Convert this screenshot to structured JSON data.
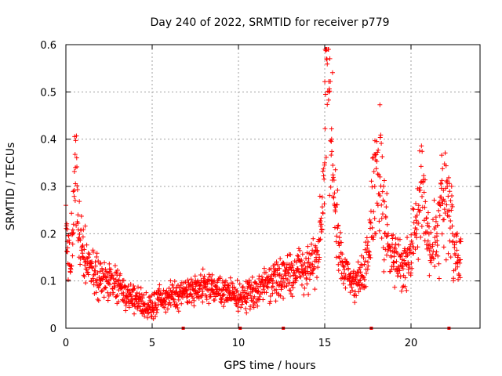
{
  "chart_data": {
    "type": "scatter",
    "title": "Day 240 of 2022, SRMTID for receiver p779",
    "xlabel": "GPS time / hours",
    "ylabel": "SRMTID / TECUs",
    "xlim": [
      0,
      24
    ],
    "ylim": [
      0,
      0.6
    ],
    "xticks": [
      0,
      5,
      10,
      15,
      20
    ],
    "xtick_labels": [
      "0",
      "5",
      "10",
      "15",
      "20"
    ],
    "yticks": [
      0,
      0.1,
      0.2,
      0.3,
      0.4,
      0.5,
      0.6
    ],
    "ytick_labels": [
      "0",
      "0.1",
      "0.2",
      "0.3",
      "0.4",
      "0.5",
      "0.6"
    ],
    "grid": true,
    "marker": "+",
    "color": "#ff0000",
    "series_summary": [
      {
        "x": 0.0,
        "y": 0.26
      },
      {
        "x": 0.1,
        "y": 0.17
      },
      {
        "x": 0.25,
        "y": 0.12
      },
      {
        "x": 0.4,
        "y": 0.2
      },
      {
        "x": 0.55,
        "y": 0.34
      },
      {
        "x": 0.7,
        "y": 0.24
      },
      {
        "x": 1.0,
        "y": 0.15
      },
      {
        "x": 1.5,
        "y": 0.13
      },
      {
        "x": 2.0,
        "y": 0.1
      },
      {
        "x": 2.5,
        "y": 0.1
      },
      {
        "x": 3.0,
        "y": 0.09
      },
      {
        "x": 3.5,
        "y": 0.07
      },
      {
        "x": 4.0,
        "y": 0.06
      },
      {
        "x": 4.5,
        "y": 0.05
      },
      {
        "x": 5.0,
        "y": 0.04
      },
      {
        "x": 5.5,
        "y": 0.06
      },
      {
        "x": 6.0,
        "y": 0.07
      },
      {
        "x": 6.5,
        "y": 0.07
      },
      {
        "x": 7.0,
        "y": 0.08
      },
      {
        "x": 7.5,
        "y": 0.08
      },
      {
        "x": 8.0,
        "y": 0.09
      },
      {
        "x": 8.5,
        "y": 0.08
      },
      {
        "x": 9.0,
        "y": 0.08
      },
      {
        "x": 9.5,
        "y": 0.07
      },
      {
        "x": 10.0,
        "y": 0.06
      },
      {
        "x": 10.5,
        "y": 0.07
      },
      {
        "x": 11.0,
        "y": 0.08
      },
      {
        "x": 11.5,
        "y": 0.09
      },
      {
        "x": 12.0,
        "y": 0.1
      },
      {
        "x": 12.5,
        "y": 0.11
      },
      {
        "x": 13.0,
        "y": 0.11
      },
      {
        "x": 13.5,
        "y": 0.12
      },
      {
        "x": 14.0,
        "y": 0.13
      },
      {
        "x": 14.5,
        "y": 0.15
      },
      {
        "x": 14.8,
        "y": 0.22
      },
      {
        "x": 15.0,
        "y": 0.35
      },
      {
        "x": 15.1,
        "y": 0.57
      },
      {
        "x": 15.25,
        "y": 0.5
      },
      {
        "x": 15.4,
        "y": 0.4
      },
      {
        "x": 15.6,
        "y": 0.25
      },
      {
        "x": 15.8,
        "y": 0.18
      },
      {
        "x": 16.0,
        "y": 0.14
      },
      {
        "x": 16.5,
        "y": 0.1
      },
      {
        "x": 17.0,
        "y": 0.1
      },
      {
        "x": 17.5,
        "y": 0.14
      },
      {
        "x": 17.9,
        "y": 0.3
      },
      {
        "x": 18.2,
        "y": 0.32
      },
      {
        "x": 18.5,
        "y": 0.2
      },
      {
        "x": 19.0,
        "y": 0.14
      },
      {
        "x": 19.5,
        "y": 0.13
      },
      {
        "x": 20.0,
        "y": 0.16
      },
      {
        "x": 20.3,
        "y": 0.2
      },
      {
        "x": 20.6,
        "y": 0.31
      },
      {
        "x": 21.0,
        "y": 0.17
      },
      {
        "x": 21.5,
        "y": 0.2
      },
      {
        "x": 21.8,
        "y": 0.27
      },
      {
        "x": 22.1,
        "y": 0.3
      },
      {
        "x": 22.4,
        "y": 0.2
      },
      {
        "x": 22.7,
        "y": 0.15
      }
    ],
    "xaxis_markers": [
      6.8,
      10.1,
      12.6,
      17.7,
      22.2
    ]
  }
}
